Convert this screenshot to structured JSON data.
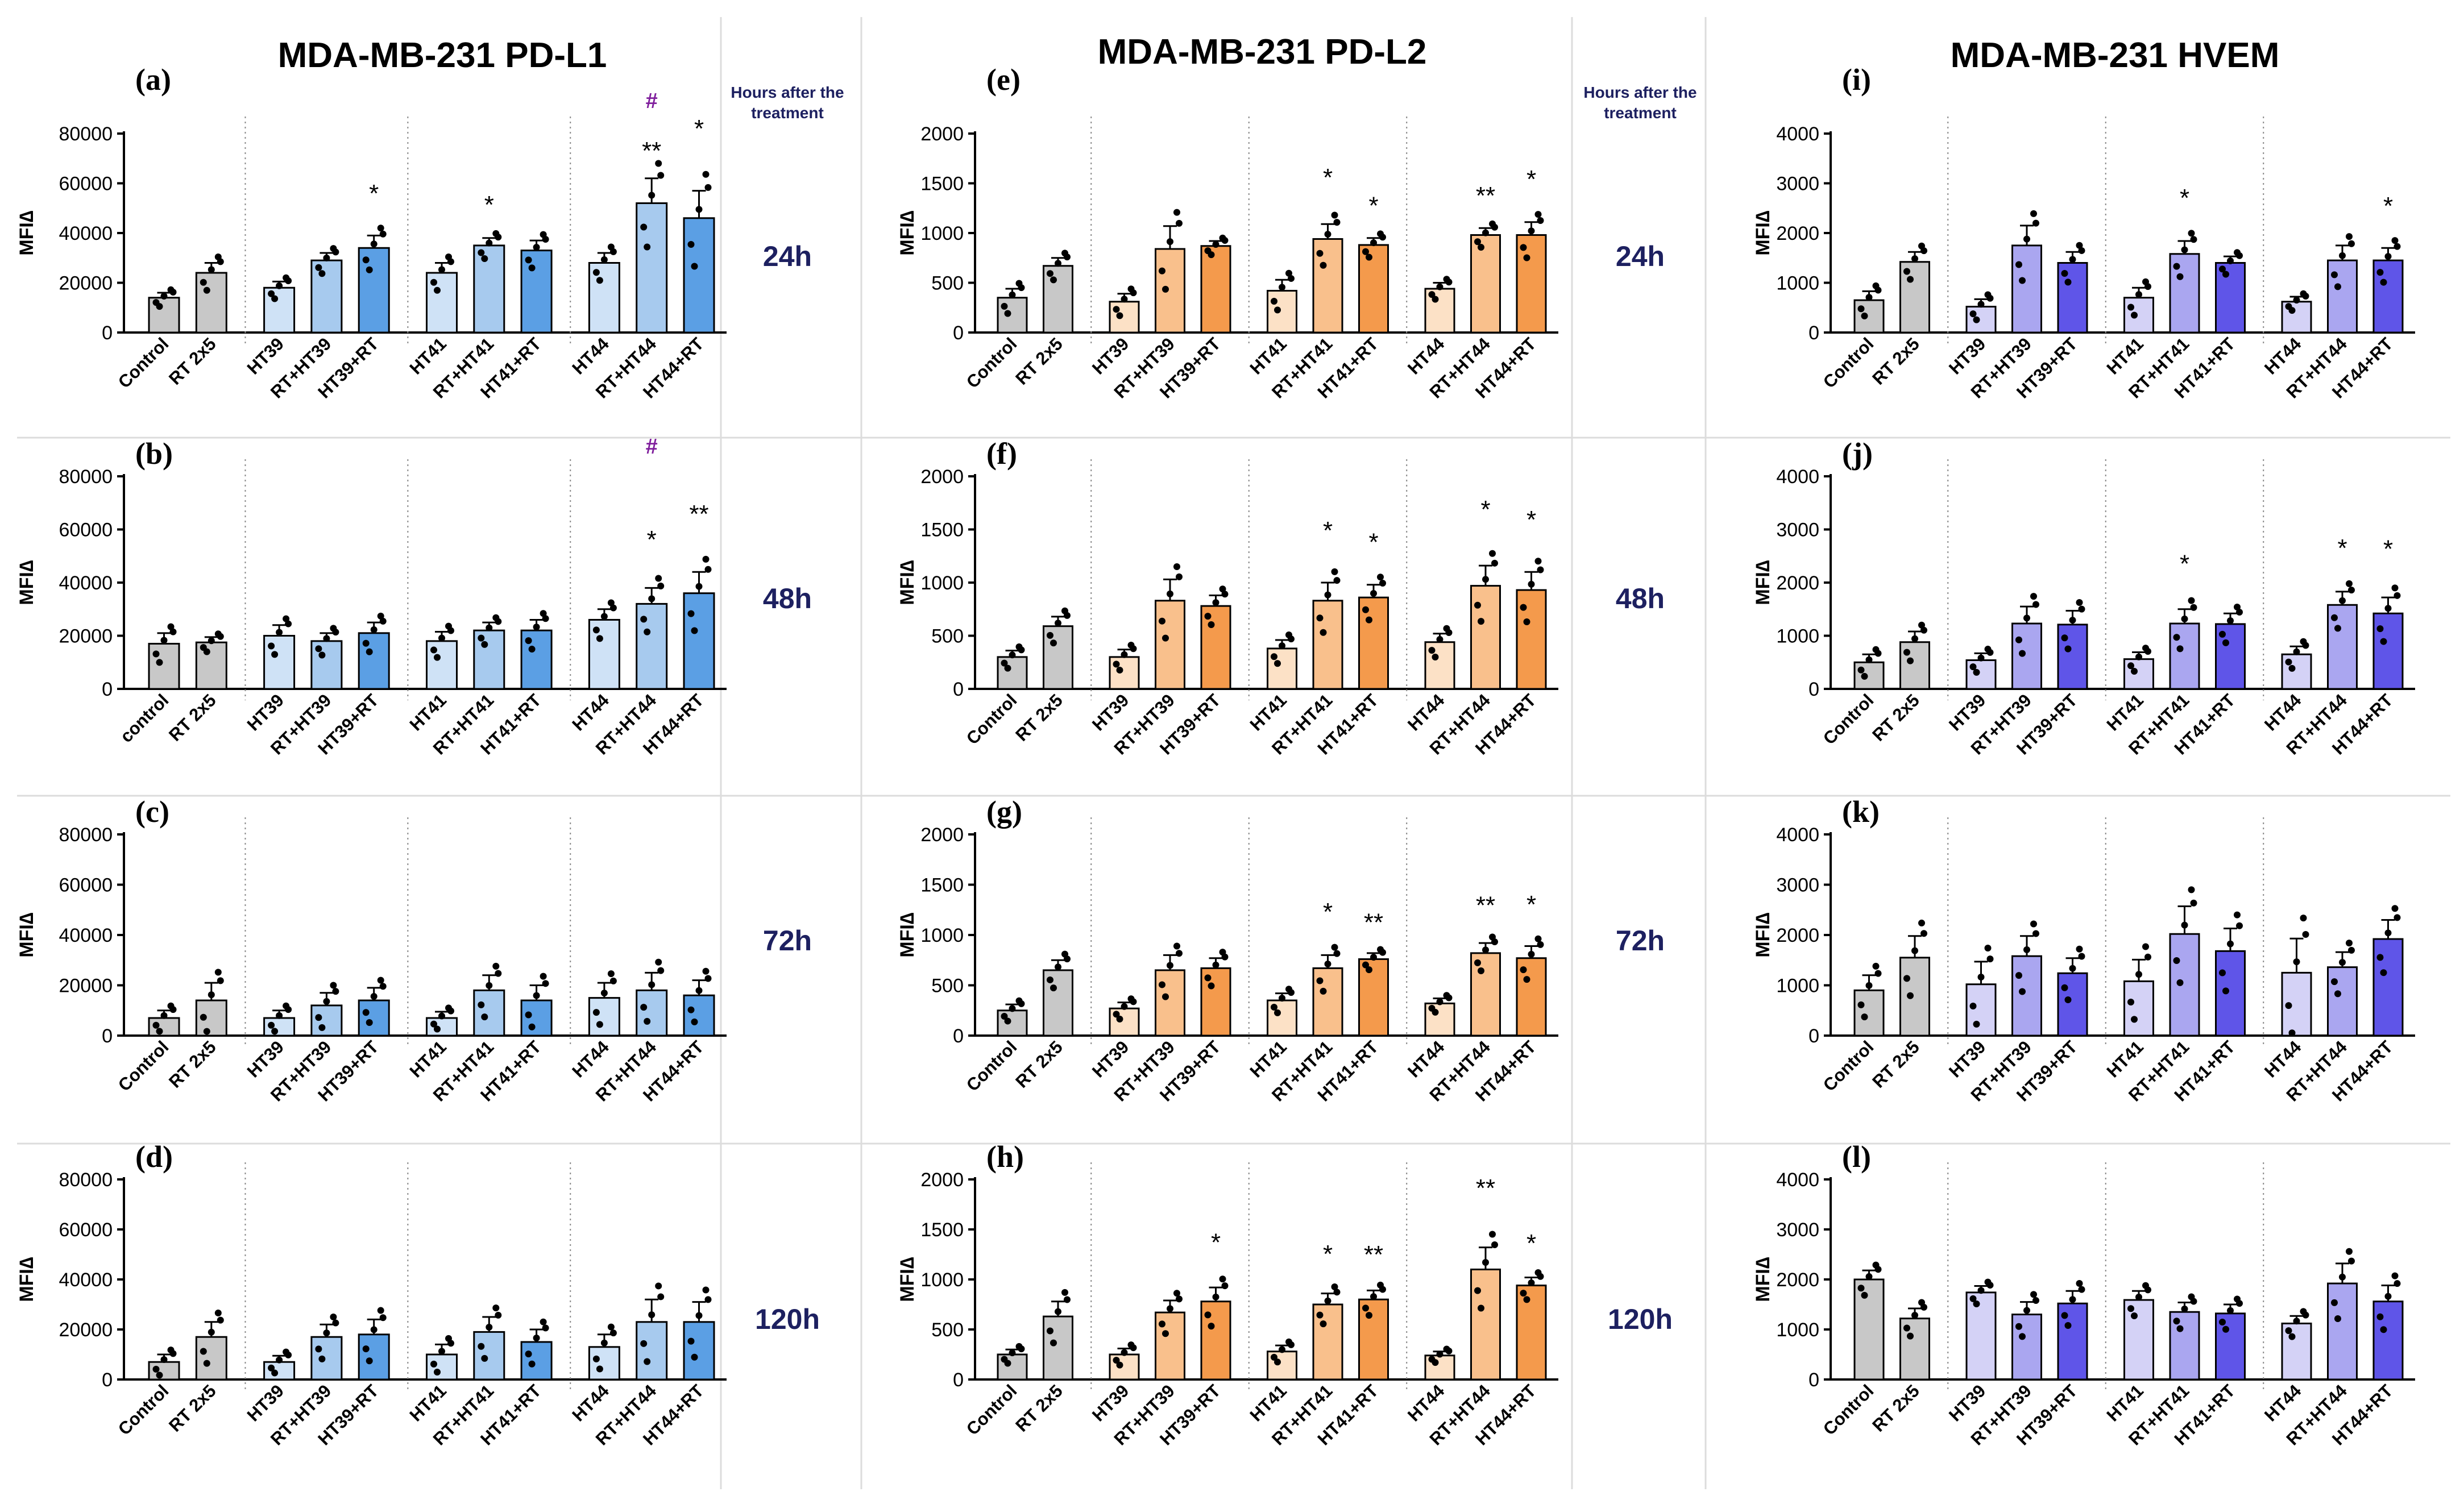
{
  "figure": {
    "column_titles": [
      "MDA-MB-231 PD-L1",
      "MDA-MB-231 PD-L2",
      "MDA-MB-231 HVEM"
    ],
    "hours_header": "Hours after the treatment",
    "hours": [
      "24h",
      "48h",
      "72h",
      "120h"
    ],
    "ylabel": "MFI∆"
  },
  "colors": {
    "col0": [
      "#c8c8c8",
      "#cfe2f6",
      "#a7caee",
      "#5b9fe4"
    ],
    "col1": [
      "#c8c8c8",
      "#fce1c6",
      "#f9c08c",
      "#f49a4c"
    ],
    "col2": [
      "#c8c8c8",
      "#d4d2f6",
      "#aaa6f0",
      "#5f55e8"
    ],
    "hash": "#7f1e9c",
    "hours_header": "#1d2060",
    "hours": "#1d2060"
  },
  "chart_data": [
    {
      "type": "bar",
      "panel": "(a)",
      "col": 0,
      "row": 0,
      "ylim": [
        0,
        80000
      ],
      "ticks": [
        0,
        20000,
        40000,
        60000,
        80000
      ],
      "ylabel": "MFI∆",
      "categories": [
        "Control",
        "RT 2x5",
        "HT39",
        "RT+HT39",
        "HT39+RT",
        "HT41",
        "RT+HT41",
        "HT41+RT",
        "HT44",
        "RT+HT44",
        "HT44+RT"
      ],
      "values": [
        14000,
        24000,
        18000,
        29000,
        34000,
        24000,
        35000,
        33000,
        28000,
        52000,
        46000
      ],
      "errors": [
        2000,
        4000,
        2500,
        3000,
        5000,
        4000,
        3000,
        4000,
        4000,
        10000,
        11000
      ],
      "sig": [
        "",
        "",
        "",
        "",
        "*",
        "",
        "*",
        "",
        "",
        "**",
        "*"
      ],
      "hash": [
        "",
        "",
        "",
        "",
        "",
        "",
        "",
        "",
        "",
        "#",
        ""
      ]
    },
    {
      "type": "bar",
      "panel": "(b)",
      "col": 0,
      "row": 1,
      "ylim": [
        0,
        80000
      ],
      "ticks": [
        0,
        20000,
        40000,
        60000,
        80000
      ],
      "ylabel": "MFI∆",
      "categories": [
        "control",
        "RT 2x5",
        "HT39",
        "RT+HT39",
        "HT39+RT",
        "HT41",
        "RT+HT41",
        "HT41+RT",
        "HT44",
        "RT+HT44",
        "HT44+RT"
      ],
      "values": [
        17000,
        17500,
        20000,
        18000,
        21000,
        18000,
        22000,
        22000,
        26000,
        32000,
        36000
      ],
      "errors": [
        4000,
        2000,
        4000,
        3000,
        4000,
        3500,
        3000,
        4000,
        4000,
        6000,
        8000
      ],
      "sig": [
        "",
        "",
        "",
        "",
        "",
        "",
        "",
        "",
        "",
        "*",
        "**"
      ],
      "hash": [
        "",
        "",
        "",
        "",
        "",
        "",
        "",
        "",
        "",
        "#",
        ""
      ]
    },
    {
      "type": "bar",
      "panel": "(c)",
      "col": 0,
      "row": 2,
      "ylim": [
        0,
        80000
      ],
      "ticks": [
        0,
        20000,
        40000,
        60000,
        80000
      ],
      "ylabel": "MFI∆",
      "categories": [
        "Control",
        "RT 2x5",
        "HT39",
        "RT+HT39",
        "HT39+RT",
        "HT41",
        "RT+HT41",
        "HT41+RT",
        "HT44",
        "RT+HT44",
        "HT44+RT"
      ],
      "values": [
        7000,
        14000,
        7000,
        12000,
        14000,
        7000,
        18000,
        14000,
        15000,
        18000,
        16000
      ],
      "errors": [
        3000,
        7000,
        3000,
        5000,
        5000,
        2500,
        6000,
        6000,
        6000,
        7000,
        6000
      ],
      "sig": [
        "",
        "",
        "",
        "",
        "",
        "",
        "",
        "",
        "",
        "",
        ""
      ],
      "hash": [
        "",
        "",
        "",
        "",
        "",
        "",
        "",
        "",
        "",
        "",
        ""
      ]
    },
    {
      "type": "bar",
      "panel": "(d)",
      "col": 0,
      "row": 3,
      "ylim": [
        0,
        80000
      ],
      "ticks": [
        0,
        20000,
        40000,
        60000,
        80000
      ],
      "ylabel": "MFI∆",
      "categories": [
        "Control",
        "RT 2x5",
        "HT39",
        "RT+HT39",
        "HT39+RT",
        "HT41",
        "RT+HT41",
        "HT41+RT",
        "HT44",
        "RT+HT44",
        "HT44+RT"
      ],
      "values": [
        7000,
        17000,
        7000,
        17000,
        18000,
        10000,
        19000,
        15000,
        13000,
        23000,
        23000
      ],
      "errors": [
        3000,
        6000,
        2500,
        5000,
        6000,
        4000,
        6000,
        5000,
        5000,
        9000,
        8000
      ],
      "sig": [
        "",
        "",
        "",
        "",
        "",
        "",
        "",
        "",
        "",
        "",
        ""
      ],
      "hash": [
        "",
        "",
        "",
        "",
        "",
        "",
        "",
        "",
        "",
        "",
        ""
      ]
    },
    {
      "type": "bar",
      "panel": "(e)",
      "col": 1,
      "row": 0,
      "ylim": [
        0,
        2000
      ],
      "ticks": [
        0,
        500,
        1000,
        1500,
        2000
      ],
      "ylabel": "MFI∆",
      "categories": [
        "Control",
        "RT 2x5",
        "HT39",
        "RT+HT39",
        "HT39+RT",
        "HT41",
        "RT+HT41",
        "HT41+RT",
        "HT44",
        "RT+HT44",
        "HT44+RT"
      ],
      "values": [
        350,
        670,
        310,
        840,
        870,
        420,
        940,
        880,
        440,
        980,
        980
      ],
      "errors": [
        90,
        80,
        80,
        230,
        50,
        110,
        150,
        70,
        60,
        70,
        130
      ],
      "sig": [
        "",
        "",
        "",
        "",
        "",
        "",
        "*",
        "*",
        "",
        "**",
        "*"
      ],
      "hash": [
        "",
        "",
        "",
        "",
        "",
        "",
        "",
        "",
        "",
        "",
        ""
      ]
    },
    {
      "type": "bar",
      "panel": "(f)",
      "col": 1,
      "row": 1,
      "ylim": [
        0,
        2000
      ],
      "ticks": [
        0,
        500,
        1000,
        1500,
        2000
      ],
      "ylabel": "MFI∆",
      "categories": [
        "Control",
        "RT 2x5",
        "HT39",
        "RT+HT39",
        "HT39+RT",
        "HT41",
        "RT+HT41",
        "HT41+RT",
        "HT44",
        "RT+HT44",
        "HT44+RT"
      ],
      "values": [
        300,
        590,
        300,
        830,
        780,
        380,
        830,
        860,
        440,
        970,
        930
      ],
      "errors": [
        60,
        90,
        70,
        200,
        100,
        80,
        170,
        120,
        80,
        190,
        170
      ],
      "sig": [
        "",
        "",
        "",
        "",
        "",
        "",
        "*",
        "*",
        "",
        "*",
        "*"
      ],
      "hash": [
        "",
        "",
        "",
        "",
        "",
        "",
        "",
        "",
        "",
        "",
        ""
      ]
    },
    {
      "type": "bar",
      "panel": "(g)",
      "col": 1,
      "row": 2,
      "ylim": [
        0,
        2000
      ],
      "ticks": [
        0,
        500,
        1000,
        1500,
        2000
      ],
      "ylabel": "MFI∆",
      "categories": [
        "Control",
        "RT 2x5",
        "HT39",
        "RT+HT39",
        "HT39+RT",
        "HT41",
        "RT+HT41",
        "HT41+RT",
        "HT44",
        "RT+HT44",
        "HT44+RT"
      ],
      "values": [
        250,
        650,
        270,
        650,
        670,
        350,
        670,
        760,
        320,
        820,
        770
      ],
      "errors": [
        60,
        100,
        60,
        150,
        100,
        70,
        130,
        60,
        50,
        100,
        120
      ],
      "sig": [
        "",
        "",
        "",
        "",
        "",
        "",
        "*",
        "**",
        "",
        "**",
        "*"
      ],
      "hash": [
        "",
        "",
        "",
        "",
        "",
        "",
        "",
        "",
        "",
        "",
        ""
      ]
    },
    {
      "type": "bar",
      "panel": "(h)",
      "col": 1,
      "row": 3,
      "ylim": [
        0,
        2000
      ],
      "ticks": [
        0,
        500,
        1000,
        1500,
        2000
      ],
      "ylabel": "MFI∆",
      "categories": [
        "Control",
        "RT 2x5",
        "HT39",
        "RT+HT39",
        "HT39+RT",
        "HT41",
        "RT+HT41",
        "HT41+RT",
        "HT44",
        "RT+HT44",
        "HT44+RT"
      ],
      "values": [
        250,
        630,
        250,
        670,
        780,
        280,
        750,
        800,
        240,
        1100,
        940
      ],
      "errors": [
        50,
        150,
        60,
        120,
        140,
        60,
        110,
        90,
        40,
        220,
        80
      ],
      "sig": [
        "",
        "",
        "",
        "",
        "*",
        "",
        "*",
        "**",
        "",
        "**",
        "*"
      ],
      "hash": [
        "",
        "",
        "",
        "",
        "",
        "",
        "",
        "",
        "",
        "",
        ""
      ]
    },
    {
      "type": "bar",
      "panel": "(i)",
      "col": 2,
      "row": 0,
      "ylim": [
        0,
        4000
      ],
      "ticks": [
        0,
        1000,
        2000,
        3000,
        4000
      ],
      "ylabel": "MFI∆",
      "categories": [
        "Control",
        "RT 2x5",
        "HT39",
        "RT+HT39",
        "HT39+RT",
        "HT41",
        "RT+HT41",
        "HT41+RT",
        "HT44",
        "RT+HT44",
        "HT44+RT"
      ],
      "values": [
        650,
        1420,
        520,
        1750,
        1400,
        700,
        1580,
        1400,
        620,
        1450,
        1450
      ],
      "errors": [
        180,
        200,
        150,
        400,
        220,
        200,
        260,
        130,
        100,
        300,
        250
      ],
      "sig": [
        "",
        "",
        "",
        "",
        "",
        "",
        "*",
        "",
        "",
        "",
        "*"
      ],
      "hash": [
        "",
        "",
        "",
        "",
        "",
        "",
        "",
        "",
        "",
        "",
        ""
      ]
    },
    {
      "type": "bar",
      "panel": "(j)",
      "col": 2,
      "row": 1,
      "ylim": [
        0,
        4000
      ],
      "ticks": [
        0,
        1000,
        2000,
        3000,
        4000
      ],
      "ylabel": "MFI∆",
      "categories": [
        "Control",
        "RT 2x5",
        "HT39",
        "RT+HT39",
        "HT39+RT",
        "HT41",
        "RT+HT41",
        "HT41+RT",
        "HT44",
        "RT+HT44",
        "HT44+RT"
      ],
      "values": [
        500,
        880,
        540,
        1230,
        1210,
        560,
        1230,
        1220,
        650,
        1580,
        1420
      ],
      "errors": [
        150,
        200,
        130,
        320,
        260,
        130,
        270,
        200,
        150,
        250,
        300
      ],
      "sig": [
        "",
        "",
        "",
        "",
        "",
        "",
        "*",
        "",
        "",
        "*",
        "*"
      ],
      "hash": [
        "",
        "",
        "",
        "",
        "",
        "",
        "",
        "",
        "",
        "",
        ""
      ]
    },
    {
      "type": "bar",
      "panel": "(k)",
      "col": 2,
      "row": 2,
      "ylim": [
        0,
        4000
      ],
      "ticks": [
        0,
        1000,
        2000,
        3000,
        4000
      ],
      "ylabel": "MFI∆",
      "categories": [
        "Control",
        "RT 2x5",
        "HT39",
        "RT+HT39",
        "HT39+RT",
        "HT41",
        "RT+HT41",
        "HT41+RT",
        "HT44",
        "RT+HT44",
        "HT44+RT"
      ],
      "values": [
        900,
        1550,
        1020,
        1580,
        1240,
        1080,
        2020,
        1680,
        1250,
        1360,
        1920
      ],
      "errors": [
        300,
        430,
        450,
        400,
        300,
        430,
        550,
        450,
        680,
        300,
        380
      ],
      "sig": [
        "",
        "",
        "",
        "",
        "",
        "",
        "",
        "",
        "",
        "",
        ""
      ],
      "hash": [
        "",
        "",
        "",
        "",
        "",
        "",
        "",
        "",
        "",
        "",
        ""
      ]
    },
    {
      "type": "bar",
      "panel": "(l)",
      "col": 2,
      "row": 3,
      "ylim": [
        0,
        4000
      ],
      "ticks": [
        0,
        1000,
        2000,
        3000,
        4000
      ],
      "ylabel": "MFI∆",
      "categories": [
        "Control",
        "RT 2x5",
        "HT39",
        "RT+HT39",
        "HT39+RT",
        "HT41",
        "RT+HT41",
        "HT41+RT",
        "HT44",
        "RT+HT44",
        "HT44+RT"
      ],
      "values": [
        2000,
        1220,
        1740,
        1300,
        1520,
        1590,
        1350,
        1320,
        1120,
        1920,
        1560
      ],
      "errors": [
        180,
        200,
        130,
        250,
        250,
        180,
        190,
        180,
        150,
        400,
        320
      ],
      "sig": [
        "",
        "",
        "",
        "",
        "",
        "",
        "",
        "",
        "",
        "",
        ""
      ],
      "hash": [
        "",
        "",
        "",
        "",
        "",
        "",
        "",
        "",
        "",
        "",
        ""
      ]
    }
  ]
}
